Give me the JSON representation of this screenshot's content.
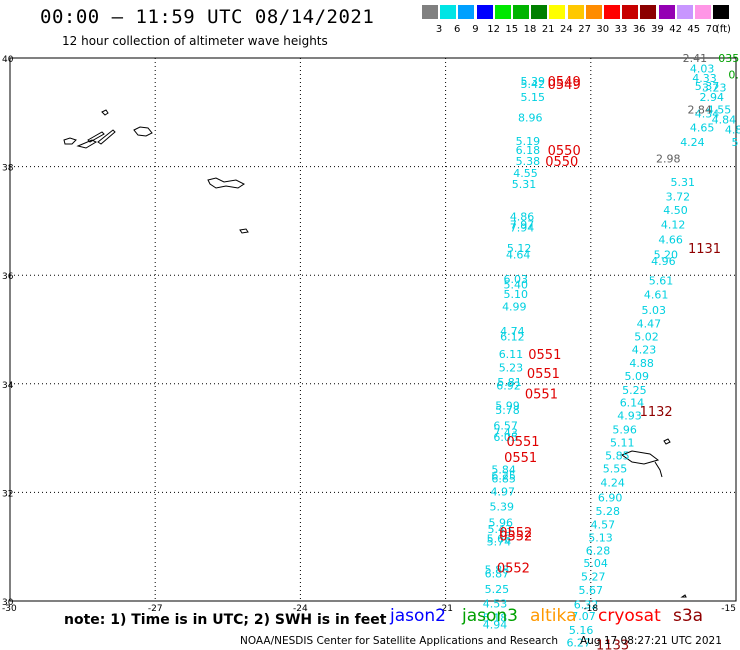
{
  "header": {
    "title": "00:00 – 11:59 UTC 08/14/2021",
    "subtitle": "12 hour collection of altimeter wave heights"
  },
  "scale": {
    "unit": "(ft)",
    "bins": [
      {
        "label": "3",
        "color": "#808080"
      },
      {
        "label": "6",
        "color": "#00e5e5"
      },
      {
        "label": "9",
        "color": "#00a0ff"
      },
      {
        "label": "12",
        "color": "#0000ff"
      },
      {
        "label": "15",
        "color": "#00e800"
      },
      {
        "label": "18",
        "color": "#00b400"
      },
      {
        "label": "21",
        "color": "#008000"
      },
      {
        "label": "24",
        "color": "#ffff00"
      },
      {
        "label": "27",
        "color": "#ffc800"
      },
      {
        "label": "30",
        "color": "#ff8c00"
      },
      {
        "label": "33",
        "color": "#ff0000"
      },
      {
        "label": "36",
        "color": "#c80000"
      },
      {
        "label": "39",
        "color": "#8c0000"
      },
      {
        "label": "42",
        "color": "#9400b4"
      },
      {
        "label": "45",
        "color": "#c896ff"
      },
      {
        "label": "70",
        "color": "#ff96e6"
      },
      {
        "label": "",
        "color": "#000000"
      }
    ]
  },
  "axes": {
    "lat_labels": [
      "40",
      "38",
      "36",
      "34",
      "32",
      "30"
    ],
    "lon_labels": [
      "-30",
      "-27",
      "-24",
      "-21",
      "-18",
      "-15"
    ],
    "lat_range": [
      30,
      40
    ],
    "lon_range": [
      -30,
      -15
    ]
  },
  "tracks": {
    "colors": {
      "cyan": "#00d0e0",
      "gray": "#606060",
      "green": "#00a000",
      "red": "#e00000",
      "darkred": "#900000"
    },
    "track_a": {
      "color": "cyan",
      "points": [
        [
          "5.39",
          39.58,
          -19.2
        ],
        [
          "5.42",
          39.52,
          -19.2
        ],
        [
          "5.15",
          39.28,
          -19.2
        ],
        [
          "8.96",
          38.9,
          -19.25
        ],
        [
          "5.19",
          38.47,
          -19.3
        ],
        [
          "6.18",
          38.31,
          -19.3
        ],
        [
          "5.38",
          38.1,
          -19.3
        ],
        [
          "4.55",
          37.88,
          -19.35
        ],
        [
          "5.31",
          37.68,
          -19.38
        ],
        [
          "4.86",
          37.08,
          -19.42
        ],
        [
          "7.97",
          36.93,
          -19.42
        ],
        [
          "7.94",
          36.88,
          -19.42
        ],
        [
          "5.12",
          36.5,
          -19.48
        ],
        [
          "4.64",
          36.38,
          -19.5
        ],
        [
          "6.03",
          35.93,
          -19.55
        ],
        [
          "5.40",
          35.83,
          -19.55
        ],
        [
          "5.10",
          35.65,
          -19.55
        ],
        [
          "4.99",
          35.42,
          -19.58
        ],
        [
          "4.74",
          34.97,
          -19.62
        ],
        [
          "6.12",
          34.87,
          -19.62
        ],
        [
          "6.11",
          34.55,
          -19.65
        ],
        [
          "5.23",
          34.3,
          -19.65
        ],
        [
          "5.81",
          34.03,
          -19.68
        ],
        [
          "6.92",
          33.97,
          -19.7
        ],
        [
          "5.99",
          33.6,
          -19.72
        ],
        [
          "5.78",
          33.52,
          -19.72
        ],
        [
          "6.57",
          33.23,
          -19.76
        ],
        [
          "7.43",
          33.1,
          -19.76
        ],
        [
          "6.05",
          33.02,
          -19.76
        ],
        [
          "5.84",
          32.42,
          -19.8
        ],
        [
          "6.25",
          32.31,
          -19.8
        ],
        [
          "6.85",
          32.26,
          -19.8
        ],
        [
          "4.97",
          32.02,
          -19.82
        ],
        [
          "5.39",
          31.74,
          -19.84
        ],
        [
          "5.96",
          31.45,
          -19.86
        ],
        [
          "5.43",
          31.33,
          -19.88
        ],
        [
          "5.66",
          31.15,
          -19.9
        ],
        [
          "5.74",
          31.1,
          -19.9
        ],
        [
          "5.88",
          30.58,
          -19.94
        ],
        [
          "6.87",
          30.51,
          -19.94
        ],
        [
          "5.25",
          30.22,
          -19.94
        ],
        [
          "4.53",
          29.95,
          -19.98
        ],
        [
          "5.18",
          29.7,
          -19.98
        ],
        [
          "4.94",
          29.57,
          -19.98
        ]
      ]
    },
    "track_b": {
      "color": "cyan",
      "points": [
        [
          "4.03",
          39.81,
          -15.7
        ],
        [
          "4.33",
          39.63,
          -15.65
        ],
        [
          "5.37",
          39.48,
          -15.6
        ],
        [
          "3.23",
          39.46,
          -15.45
        ],
        [
          "2.94",
          39.28,
          -15.5
        ],
        [
          "4.55",
          39.05,
          -15.35
        ],
        [
          "4.34",
          38.98,
          -15.6
        ],
        [
          "4.84",
          38.87,
          -15.25
        ],
        [
          "4.65",
          38.72,
          -15.7
        ],
        [
          "4.24",
          38.45,
          -15.9
        ],
        [
          "4.8",
          38.68,
          -15.05
        ],
        [
          "5",
          38.45,
          -15.02
        ],
        [
          "5.31",
          37.72,
          -16.1
        ],
        [
          "3.72",
          37.45,
          -16.2
        ],
        [
          "4.50",
          37.2,
          -16.25
        ],
        [
          "4.12",
          36.93,
          -16.3
        ],
        [
          "4.66",
          36.66,
          -16.35
        ],
        [
          "5.20",
          36.38,
          -16.45
        ],
        [
          "4.96",
          36.26,
          -16.5
        ],
        [
          "5.61",
          35.9,
          -16.55
        ],
        [
          "4.61",
          35.64,
          -16.65
        ],
        [
          "5.03",
          35.36,
          -16.7
        ],
        [
          "4.47",
          35.11,
          -16.8
        ],
        [
          "5.02",
          34.87,
          -16.85
        ],
        [
          "4.23",
          34.63,
          -16.9
        ],
        [
          "4.88",
          34.38,
          -16.95
        ],
        [
          "5.09",
          34.14,
          -17.05
        ],
        [
          "5.25",
          33.89,
          -17.1
        ],
        [
          "6.14",
          33.66,
          -17.15
        ],
        [
          "4.93",
          33.42,
          -17.2
        ],
        [
          "5.96",
          33.16,
          -17.3
        ],
        [
          "5.11",
          32.92,
          -17.35
        ],
        [
          "5.85",
          32.68,
          -17.45
        ],
        [
          "5.55",
          32.44,
          -17.5
        ],
        [
          "4.24",
          32.18,
          -17.55
        ],
        [
          "6.90",
          31.91,
          -17.6
        ],
        [
          "5.28",
          31.66,
          -17.65
        ],
        [
          "4.57",
          31.41,
          -17.75
        ],
        [
          "5.13",
          31.17,
          -17.8
        ],
        [
          "6.28",
          30.93,
          -17.85
        ],
        [
          "5.04",
          30.7,
          -17.9
        ],
        [
          "5.27",
          30.45,
          -17.95
        ],
        [
          "5.67",
          30.2,
          -18.0
        ],
        [
          "6.32",
          29.94,
          -18.1
        ],
        [
          "7.07",
          29.72,
          -18.15
        ],
        [
          "5.16",
          29.47,
          -18.2
        ],
        [
          "6.27",
          29.24,
          -18.25
        ]
      ]
    },
    "gray_points": [
      [
        "2.41",
        40.0,
        -15.85
      ],
      [
        "2.84",
        39.05,
        -15.75
      ],
      [
        "2.98",
        38.15,
        -16.4
      ]
    ],
    "green_points": [
      [
        "035",
        40.0,
        -15.15
      ],
      [
        "0.",
        39.7,
        -15.05
      ]
    ],
    "time_tags": [
      {
        "text": "0549",
        "lat": 39.58,
        "lon": -18.55,
        "color": "red"
      },
      {
        "text": "0549",
        "lat": 39.52,
        "lon": -18.55,
        "color": "red"
      },
      {
        "text": "0550",
        "lat": 38.31,
        "lon": -18.55,
        "color": "red"
      },
      {
        "text": "0550",
        "lat": 38.1,
        "lon": -18.6,
        "color": "red"
      },
      {
        "text": "0551",
        "lat": 34.55,
        "lon": -18.95,
        "color": "red"
      },
      {
        "text": "0551",
        "lat": 34.2,
        "lon": -18.98,
        "color": "red"
      },
      {
        "text": "0551",
        "lat": 33.82,
        "lon": -19.02,
        "color": "red"
      },
      {
        "text": "0551",
        "lat": 32.95,
        "lon": -19.4,
        "color": "red"
      },
      {
        "text": "0551",
        "lat": 32.65,
        "lon": -19.45,
        "color": "red"
      },
      {
        "text": "0552",
        "lat": 31.27,
        "lon": -19.55,
        "color": "red"
      },
      {
        "text": "0552",
        "lat": 31.21,
        "lon": -19.55,
        "color": "red"
      },
      {
        "text": "0552",
        "lat": 30.62,
        "lon": -19.6,
        "color": "red"
      },
      {
        "text": "1131",
        "lat": 36.5,
        "lon": -15.65,
        "color": "darkred"
      },
      {
        "text": "1132",
        "lat": 33.5,
        "lon": -16.65,
        "color": "darkred"
      },
      {
        "text": "1133",
        "lat": 29.2,
        "lon": -17.55,
        "color": "darkred"
      }
    ]
  },
  "footer": {
    "note": "note: 1) Time is in UTC; 2) SWH is in feet",
    "legend": [
      {
        "text": "jason2",
        "color": "#0000ff"
      },
      {
        "text": "jason3",
        "color": "#00a000"
      },
      {
        "text": "altika",
        "color": "#ff9900"
      },
      {
        "text": "cryosat",
        "color": "#ff0000"
      },
      {
        "text": "s3a",
        "color": "#900000"
      }
    ],
    "credit": "NOAA/NESDIS Center for Satellite Applications and Research",
    "stamp": "Aug 17 08:27:21 UTC 2021"
  }
}
